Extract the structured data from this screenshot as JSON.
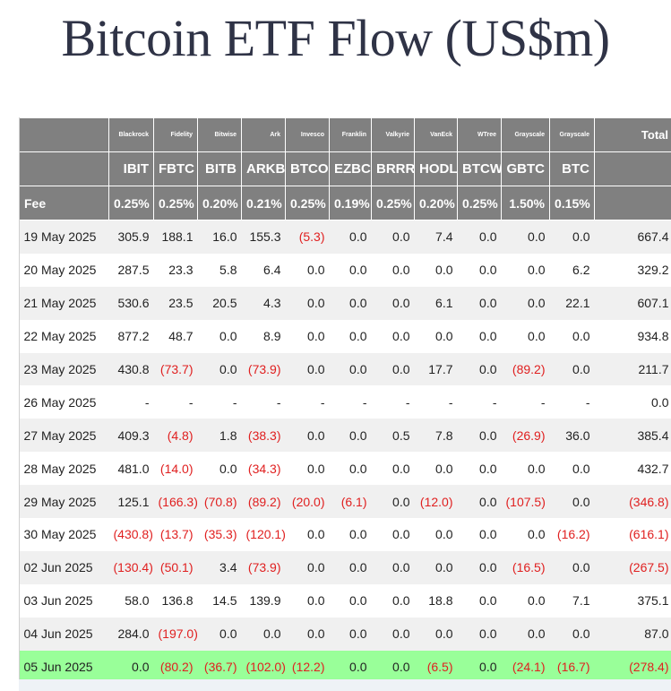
{
  "title": "Bitcoin ETF Flow (US$m)",
  "header": {
    "issuers": [
      "Blackrock",
      "Fidelity",
      "Bitwise",
      "Ark",
      "Invesco",
      "Franklin",
      "Valkyrie",
      "VanEck",
      "WTree",
      "Grayscale",
      "Grayscale"
    ],
    "total_label": "Total",
    "tickers": [
      "IBIT",
      "FBTC",
      "BITB",
      "ARKB",
      "BTCO",
      "EZBC",
      "BRRR",
      "HODL",
      "BTCW",
      "GBTC",
      "BTC"
    ],
    "fee_label": "Fee",
    "fees": [
      "0.25%",
      "0.25%",
      "0.20%",
      "0.21%",
      "0.25%",
      "0.19%",
      "0.25%",
      "0.20%",
      "0.25%",
      "1.50%",
      "0.15%"
    ]
  },
  "rows": [
    {
      "date": "19 May 2025",
      "values": [
        "305.9",
        "188.1",
        "16.0",
        "155.3",
        "(5.3)",
        "0.0",
        "0.0",
        "7.4",
        "0.0",
        "0.0",
        "0.0"
      ],
      "total": "667.4"
    },
    {
      "date": "20 May 2025",
      "values": [
        "287.5",
        "23.3",
        "5.8",
        "6.4",
        "0.0",
        "0.0",
        "0.0",
        "0.0",
        "0.0",
        "0.0",
        "6.2"
      ],
      "total": "329.2"
    },
    {
      "date": "21 May 2025",
      "values": [
        "530.6",
        "23.5",
        "20.5",
        "4.3",
        "0.0",
        "0.0",
        "0.0",
        "6.1",
        "0.0",
        "0.0",
        "22.1"
      ],
      "total": "607.1"
    },
    {
      "date": "22 May 2025",
      "values": [
        "877.2",
        "48.7",
        "0.0",
        "8.9",
        "0.0",
        "0.0",
        "0.0",
        "0.0",
        "0.0",
        "0.0",
        "0.0"
      ],
      "total": "934.8"
    },
    {
      "date": "23 May 2025",
      "values": [
        "430.8",
        "(73.7)",
        "0.0",
        "(73.9)",
        "0.0",
        "0.0",
        "0.0",
        "17.7",
        "0.0",
        "(89.2)",
        "0.0"
      ],
      "total": "211.7"
    },
    {
      "date": "26 May 2025",
      "values": [
        "-",
        "-",
        "-",
        "-",
        "-",
        "-",
        "-",
        "-",
        "-",
        "-",
        "-"
      ],
      "total": "0.0"
    },
    {
      "date": "27 May 2025",
      "values": [
        "409.3",
        "(4.8)",
        "1.8",
        "(38.3)",
        "0.0",
        "0.0",
        "0.5",
        "7.8",
        "0.0",
        "(26.9)",
        "36.0"
      ],
      "total": "385.4"
    },
    {
      "date": "28 May 2025",
      "values": [
        "481.0",
        "(14.0)",
        "0.0",
        "(34.3)",
        "0.0",
        "0.0",
        "0.0",
        "0.0",
        "0.0",
        "0.0",
        "0.0"
      ],
      "total": "432.7"
    },
    {
      "date": "29 May 2025",
      "values": [
        "125.1",
        "(166.3)",
        "(70.8)",
        "(89.2)",
        "(20.0)",
        "(6.1)",
        "0.0",
        "(12.0)",
        "0.0",
        "(107.5)",
        "0.0"
      ],
      "total": "(346.8)"
    },
    {
      "date": "30 May 2025",
      "values": [
        "(430.8)",
        "(13.7)",
        "(35.3)",
        "(120.1)",
        "0.0",
        "0.0",
        "0.0",
        "0.0",
        "0.0",
        "0.0",
        "(16.2)"
      ],
      "total": "(616.1)"
    },
    {
      "date": "02 Jun 2025",
      "values": [
        "(130.4)",
        "(50.1)",
        "3.4",
        "(73.9)",
        "0.0",
        "0.0",
        "0.0",
        "0.0",
        "0.0",
        "(16.5)",
        "0.0"
      ],
      "total": "(267.5)"
    },
    {
      "date": "03 Jun 2025",
      "values": [
        "58.0",
        "136.8",
        "14.5",
        "139.9",
        "0.0",
        "0.0",
        "0.0",
        "18.8",
        "0.0",
        "0.0",
        "7.1"
      ],
      "total": "375.1"
    },
    {
      "date": "04 Jun 2025",
      "values": [
        "284.0",
        "(197.0)",
        "0.0",
        "0.0",
        "0.0",
        "0.0",
        "0.0",
        "0.0",
        "0.0",
        "0.0",
        "0.0"
      ],
      "total": "87.0"
    },
    {
      "date": "05 Jun 2025",
      "values": [
        "0.0",
        "(80.2)",
        "(36.7)",
        "(102.0)",
        "(12.2)",
        "0.0",
        "0.0",
        "(6.5)",
        "0.0",
        "(24.1)",
        "(16.7)"
      ],
      "total": "(278.4)",
      "highlight": true
    }
  ],
  "colors": {
    "header_bg": "#808080",
    "negative": "#e02020",
    "highlight": "#99ff99",
    "title": "#2f3346"
  }
}
